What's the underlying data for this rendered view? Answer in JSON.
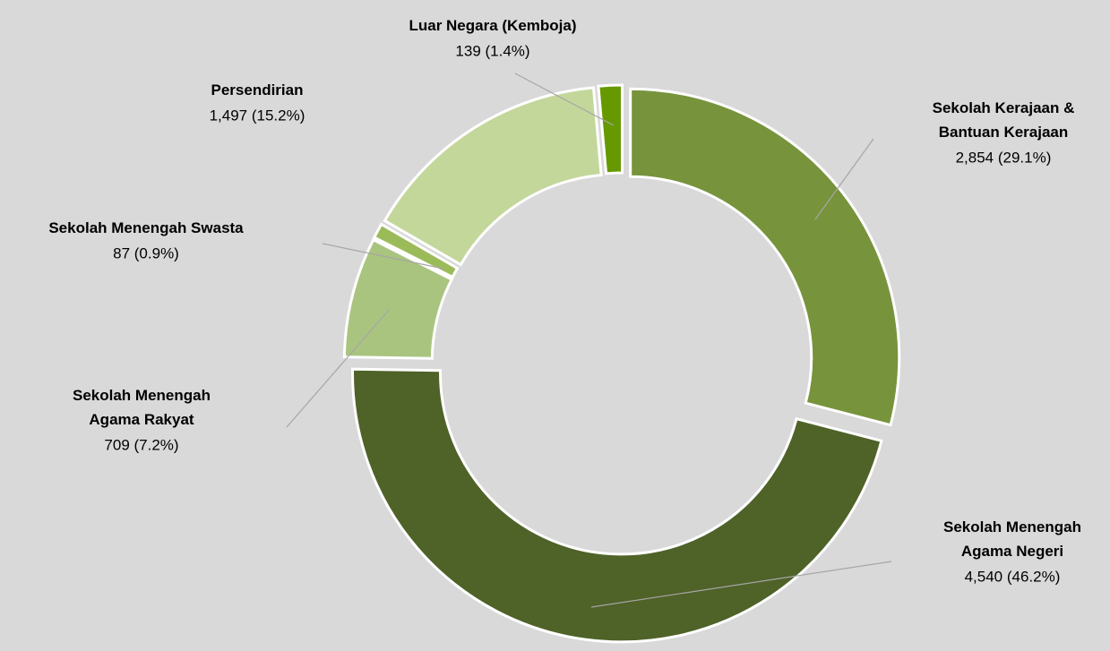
{
  "chart_data": {
    "type": "donut",
    "categories": [
      "Sekolah Kerajaan & Bantuan Kerajaan",
      "Sekolah Menengah Agama Negeri",
      "Sekolah Menengah Agama Rakyat",
      "Sekolah Menengah Swasta",
      "Persendirian",
      "Luar Negara (Kemboja)"
    ],
    "values": [
      2854,
      4540,
      709,
      87,
      1497,
      139
    ],
    "value_labels": [
      "2,854 (29.1%)",
      "4,540 (46.2%)",
      "709 (7.2%)",
      "87 (0.9%)",
      "1,497 (15.2%)",
      "139 (1.4%)"
    ],
    "colors": [
      "#77933c",
      "#4f6228",
      "#a9c47f",
      "#9bbb59",
      "#c4d79b",
      "#669900"
    ]
  }
}
